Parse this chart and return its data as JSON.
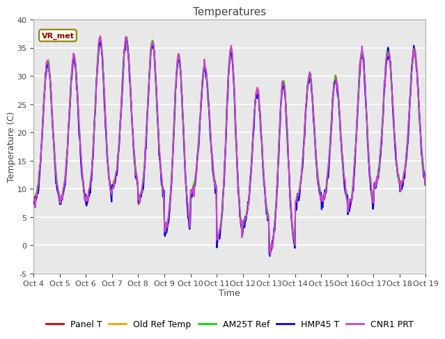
{
  "title": "Temperatures",
  "xlabel": "Time",
  "ylabel": "Temperature (C)",
  "ylim": [
    -5,
    40
  ],
  "xlim": [
    0,
    15
  ],
  "tick_labels": [
    "Oct 4",
    "Oct 5",
    "Oct 6",
    "Oct 7",
    "Oct 8",
    "Oct 9",
    "Oct 10",
    "Oct 11",
    "Oct 12",
    "Oct 13",
    "Oct 14",
    "Oct 15",
    "Oct 16",
    "Oct 17",
    "Oct 18",
    "Oct 19"
  ],
  "yticks": [
    -5,
    0,
    5,
    10,
    15,
    20,
    25,
    30,
    35,
    40
  ],
  "legend_labels": [
    "Panel T",
    "Old Ref Temp",
    "AM25T Ref",
    "HMP45 T",
    "CNR1 PRT"
  ],
  "legend_colors": [
    "#dd0000",
    "#ff9900",
    "#00dd00",
    "#0000ee",
    "#cc44cc"
  ],
  "line_widths": [
    1.0,
    1.2,
    1.5,
    1.5,
    1.5
  ],
  "annotation_text": "VR_met",
  "plot_bg_color": "#e8e8e8",
  "grid_color": "#ffffff",
  "title_fontsize": 11,
  "axis_label_fontsize": 9,
  "tick_fontsize": 8,
  "legend_fontsize": 9,
  "day_maxes": [
    32.5,
    33.2,
    36.5,
    36.5,
    36.0,
    33.5,
    31.5,
    34.8,
    27.2,
    28.8,
    30.0,
    29.5,
    34.0,
    34.5,
    34.5
  ],
  "day_mins": [
    7.5,
    7.5,
    7.5,
    10.0,
    7.5,
    2.0,
    9.0,
    0.5,
    3.5,
    -1.5,
    7.5,
    7.5,
    6.0,
    10.0,
    10.0
  ]
}
